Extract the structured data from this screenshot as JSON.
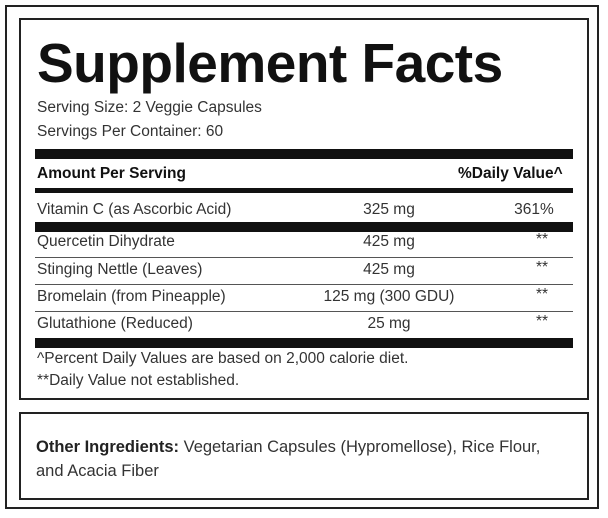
{
  "title": "Supplement Facts",
  "serving_size": "Serving Size: 2 Veggie Capsules",
  "servings_per_container": "Servings Per Container: 60",
  "header": {
    "amount_per_serving": "Amount Per Serving",
    "daily_value": "%Daily Value^"
  },
  "rows": [
    {
      "name": "Vitamin C (as Ascorbic Acid)",
      "amount": "325 mg",
      "dv": "361%"
    },
    {
      "name": "Quercetin Dihydrate",
      "amount": "425 mg",
      "dv": "**"
    },
    {
      "name": "Stinging Nettle (Leaves)",
      "amount": "425 mg",
      "dv": "**"
    },
    {
      "name": "Bromelain (from Pineapple)",
      "amount": "125 mg (300 GDU)",
      "dv": "**"
    },
    {
      "name": "Glutathione (Reduced)",
      "amount": "25 mg",
      "dv": "**"
    }
  ],
  "footnotes": {
    "percent_daily": "^Percent Daily Values are based on 2,000 calorie diet.",
    "not_established": "**Daily Value not established."
  },
  "other_ingredients": {
    "label": "Other Ingredients:",
    "text": " Vegetarian Capsules (Hypromellose), Rice Flour, and Acacia Fiber"
  }
}
